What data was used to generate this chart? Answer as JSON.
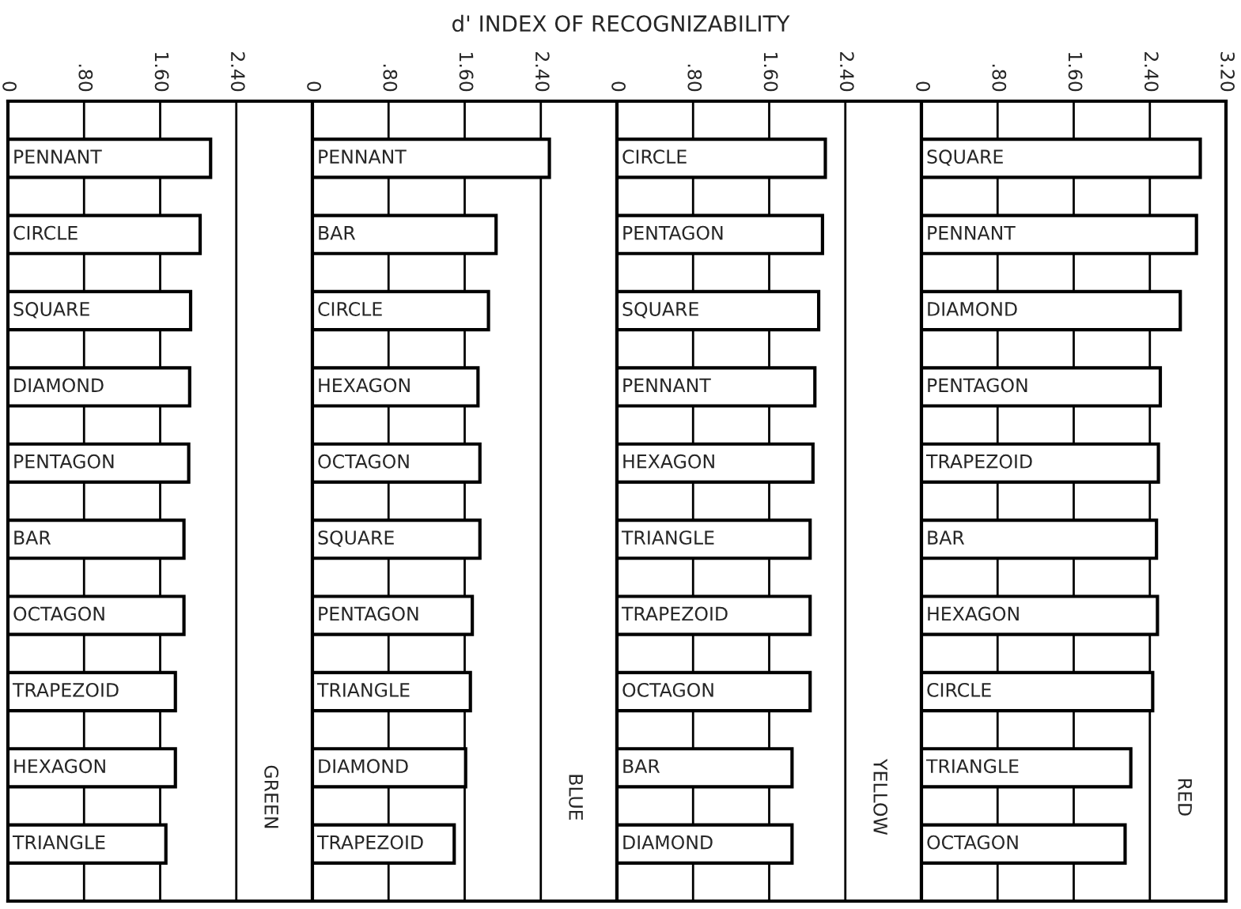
{
  "chart_data": [
    {
      "type": "bar",
      "orientation": "horizontal",
      "title": "GREEN",
      "categories": [
        "PENNANT",
        "CIRCLE",
        "SQUARE",
        "DIAMOND",
        "PENTAGON",
        "BAR",
        "OCTAGON",
        "TRAPEZOID",
        "HEXAGON",
        "TRIANGLE"
      ],
      "values": [
        2.13,
        2.02,
        1.92,
        1.91,
        1.9,
        1.85,
        1.85,
        1.76,
        1.76,
        1.66
      ],
      "color": "#ffffff",
      "xlim": [
        0,
        3.2
      ],
      "xticks": [
        0,
        {
          "value": 0.8,
          "label": ".80"
        },
        {
          "value": 1.6,
          "label": "1.60"
        },
        {
          "value": 2.4,
          "label": "2.40"
        }
      ],
      "grid": "x",
      "legend": false
    },
    {
      "type": "bar",
      "orientation": "horizontal",
      "title": "BLUE",
      "categories": [
        "PENNANT",
        "BAR",
        "CIRCLE",
        "HEXAGON",
        "OCTAGON",
        "SQUARE",
        "PENTAGON",
        "TRIANGLE",
        "DIAMOND",
        "TRAPEZOID"
      ],
      "values": [
        2.49,
        1.93,
        1.85,
        1.74,
        1.76,
        1.76,
        1.68,
        1.66,
        1.61,
        1.49
      ],
      "color": "#ffffff",
      "xlim": [
        0,
        3.2
      ],
      "xticks": [
        0,
        {
          "value": 0.8,
          "label": ".80"
        },
        {
          "value": 1.6,
          "label": "1.60"
        },
        {
          "value": 2.4,
          "label": "2.40"
        }
      ],
      "grid": "x",
      "legend": false
    },
    {
      "type": "bar",
      "orientation": "horizontal",
      "title": "YELLOW",
      "xlabel": "d' INDEX OF RECOGNIZABILITY",
      "categories": [
        "CIRCLE",
        "PENTAGON",
        "SQUARE",
        "PENNANT",
        "HEXAGON",
        "TRIANGLE",
        "TRAPEZOID",
        "OCTAGON",
        "BAR",
        "DIAMOND"
      ],
      "values": [
        2.19,
        2.16,
        2.12,
        2.08,
        2.06,
        2.03,
        2.03,
        2.03,
        1.84,
        1.84
      ],
      "color": "#ffffff",
      "xlim": [
        0,
        3.2
      ],
      "xticks": [
        0,
        {
          "value": 0.8,
          "label": ".80"
        },
        {
          "value": 1.6,
          "label": "1.60"
        },
        {
          "value": 2.4,
          "label": "2.40"
        }
      ],
      "grid": "x",
      "legend": false
    },
    {
      "type": "bar",
      "orientation": "horizontal",
      "title": "RED",
      "categories": [
        "SQUARE",
        "PENNANT",
        "DIAMOND",
        "PENTAGON",
        "TRAPEZOID",
        "BAR",
        "HEXAGON",
        "CIRCLE",
        "TRIANGLE",
        "OCTAGON"
      ],
      "values": [
        2.93,
        2.89,
        2.72,
        2.51,
        2.49,
        2.47,
        2.48,
        2.43,
        2.2,
        2.14
      ],
      "color": "#ffffff",
      "xlim": [
        0,
        3.2
      ],
      "xticks": [
        0,
        {
          "value": 0.8,
          "label": ".80"
        },
        {
          "value": 1.6,
          "label": "1.60"
        },
        {
          "value": 2.4,
          "label": "2.40"
        },
        {
          "value": 3.2,
          "label": "3.20"
        }
      ],
      "grid": "x",
      "legend": false
    }
  ]
}
